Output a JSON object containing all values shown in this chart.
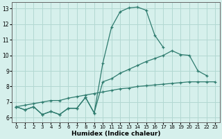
{
  "xlabel": "Humidex (Indice chaleur)",
  "bg_color": "#d6f0ec",
  "grid_color": "#b2d8d2",
  "line_color": "#2e7b6e",
  "xlim": [
    -0.5,
    23.5
  ],
  "ylim": [
    5.7,
    13.4
  ],
  "xticks": [
    0,
    1,
    2,
    3,
    4,
    5,
    6,
    7,
    8,
    9,
    10,
    11,
    12,
    13,
    14,
    15,
    16,
    17,
    18,
    19,
    20,
    21,
    22,
    23
  ],
  "yticks": [
    6,
    7,
    8,
    9,
    10,
    11,
    12,
    13
  ],
  "line1_y": [
    6.7,
    6.5,
    6.7,
    6.2,
    6.4,
    6.2,
    6.6,
    6.6,
    7.3,
    6.3,
    9.5,
    11.8,
    12.8,
    13.05,
    13.1,
    12.9,
    11.3,
    10.5,
    null,
    null,
    null,
    null,
    null,
    null
  ],
  "line2_y": [
    6.7,
    6.5,
    6.7,
    6.2,
    6.4,
    6.2,
    6.6,
    6.6,
    7.3,
    6.3,
    8.3,
    8.5,
    8.85,
    9.1,
    9.35,
    9.6,
    9.8,
    10.0,
    10.3,
    10.05,
    10.0,
    9.0,
    8.7,
    null
  ],
  "line3_y": [
    6.7,
    6.8,
    6.9,
    7.0,
    7.1,
    7.1,
    7.25,
    7.35,
    7.45,
    7.55,
    7.65,
    7.75,
    7.85,
    7.9,
    8.0,
    8.05,
    8.1,
    8.15,
    8.2,
    8.25,
    8.3,
    8.3,
    8.3,
    8.3
  ]
}
